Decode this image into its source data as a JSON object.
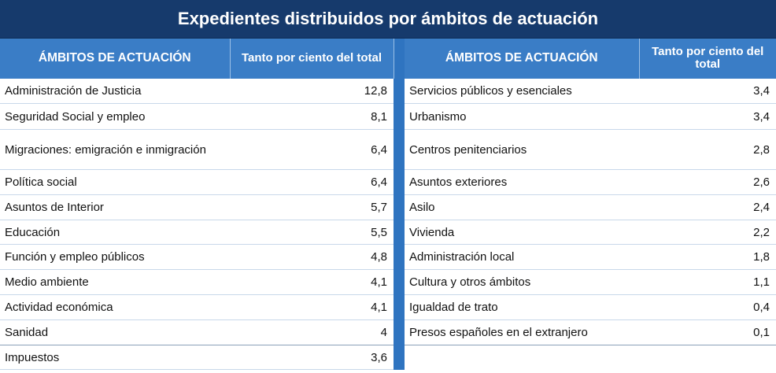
{
  "title": "Expedientes distribuidos por ámbitos de actuación",
  "headers": {
    "name": "ÁMBITOS DE ACTUACIÓN",
    "value": "Tanto por ciento del total"
  },
  "colors": {
    "title_bg": "#163a6c",
    "header_bg": "#3a7dc6",
    "separator": "#2f74c0"
  },
  "left": [
    {
      "name": "Administración de Justicia",
      "value": "12,8"
    },
    {
      "name": "Seguridad Social y empleo",
      "value": "8,1"
    },
    {
      "name": "Migraciones: emigración e inmigración",
      "value": "6,4"
    },
    {
      "name": "Política social",
      "value": "6,4"
    },
    {
      "name": "Asuntos de Interior",
      "value": "5,7"
    },
    {
      "name": "Educación",
      "value": "5,5"
    },
    {
      "name": "Función y empleo públicos",
      "value": "4,8"
    },
    {
      "name": "Medio ambiente",
      "value": "4,1"
    },
    {
      "name": "Actividad económica",
      "value": "4,1"
    },
    {
      "name": "Sanidad",
      "value": "4"
    },
    {
      "name": "Impuestos",
      "value": "3,6"
    }
  ],
  "right": [
    {
      "name": "Servicios públicos y esenciales",
      "value": "3,4"
    },
    {
      "name": "Urbanismo",
      "value": "3,4"
    },
    {
      "name": "Centros penitenciarios",
      "value": "2,8"
    },
    {
      "name": "Asuntos exteriores",
      "value": "2,6"
    },
    {
      "name": "Asilo",
      "value": "2,4"
    },
    {
      "name": "Vivienda",
      "value": "2,2"
    },
    {
      "name": "Administración local",
      "value": "1,8"
    },
    {
      "name": "Cultura y otros ámbitos",
      "value": "1,1"
    },
    {
      "name": "Igualdad de trato",
      "value": "0,4"
    },
    {
      "name": "Presos españoles en el extranjero",
      "value": "0,1"
    }
  ]
}
